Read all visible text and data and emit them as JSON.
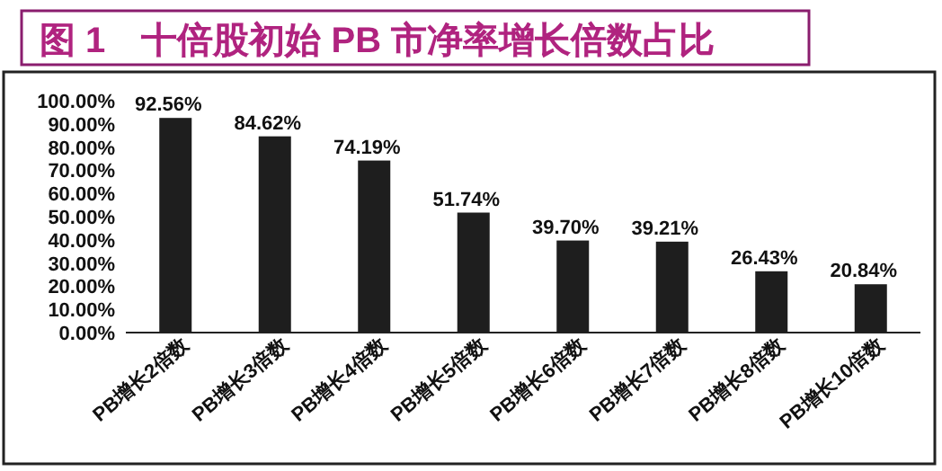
{
  "chart_data": {
    "type": "bar",
    "title": "图 1　十倍股初始 PB 市净率增长倍数占比",
    "categories": [
      "PB增长2倍数",
      "PB增长3倍数",
      "PB增长4倍数",
      "PB增长5倍数",
      "PB增长6倍数",
      "PB增长7倍数",
      "PB增长8倍数",
      "PB增长10倍数"
    ],
    "values": [
      92.56,
      84.62,
      74.19,
      51.74,
      39.7,
      39.21,
      26.43,
      20.84
    ],
    "value_labels": [
      "92.56%",
      "84.62%",
      "74.19%",
      "51.74%",
      "39.70%",
      "39.21%",
      "26.43%",
      "20.84%"
    ],
    "color": "#1e1e1e",
    "ylim": [
      0,
      100
    ],
    "yticks": [
      {
        "value": 0,
        "label": "0.00%"
      },
      {
        "value": 10,
        "label": "10.00%"
      },
      {
        "value": 20,
        "label": "20.00%"
      },
      {
        "value": 30,
        "label": "30.00%"
      },
      {
        "value": 40,
        "label": "40.00%"
      },
      {
        "value": 50,
        "label": "50.00%"
      },
      {
        "value": 60,
        "label": "60.00%"
      },
      {
        "value": 70,
        "label": "70.00%"
      },
      {
        "value": 80,
        "label": "80.00%"
      },
      {
        "value": 90,
        "label": "90.00%"
      },
      {
        "value": 100,
        "label": "100.00%"
      }
    ]
  }
}
